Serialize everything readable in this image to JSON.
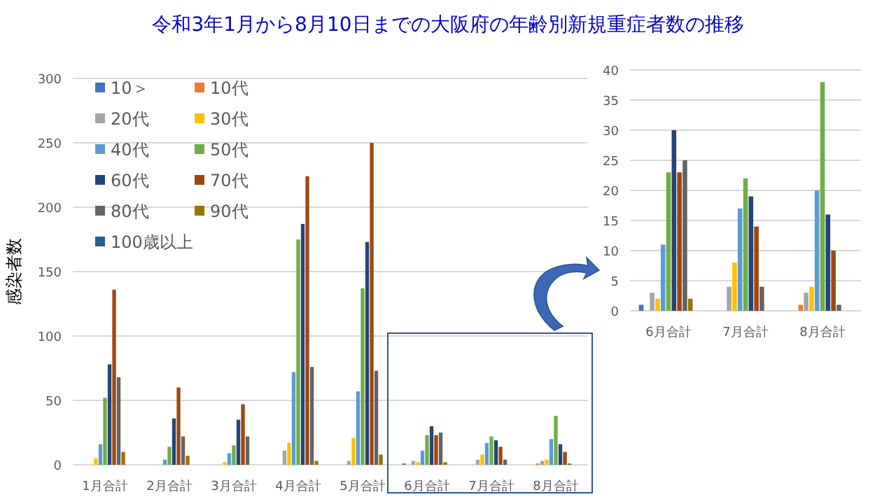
{
  "chart_data": [
    {
      "type": "bar",
      "title": "令和3年1月から8月10日までの大阪府の年齢別新規重症者数の推移",
      "ylabel": "感染者数",
      "categories": [
        "1月合計",
        "2月合計",
        "3月合計",
        "4月合計",
        "5月合計",
        "6月合計",
        "7月合計",
        "8月合計"
      ],
      "ylim": [
        0,
        300
      ],
      "yticks": [
        0,
        50,
        100,
        150,
        200,
        250,
        300
      ],
      "grid": "y",
      "legend": "top left",
      "series": [
        {
          "name": "10＞",
          "color": "#4472c4",
          "values": [
            0,
            0,
            0,
            0,
            0,
            1,
            0,
            0
          ]
        },
        {
          "name": "10代",
          "color": "#ed7d31",
          "values": [
            0,
            0,
            0,
            0,
            0,
            0,
            0,
            1
          ]
        },
        {
          "name": "20代",
          "color": "#a5a5a5",
          "values": [
            0,
            0,
            0,
            11,
            3,
            3,
            4,
            3
          ]
        },
        {
          "name": "30代",
          "color": "#ffc000",
          "values": [
            5,
            0,
            2,
            17,
            21,
            2,
            8,
            4
          ]
        },
        {
          "name": "40代",
          "color": "#5b9bd5",
          "values": [
            16,
            4,
            9,
            72,
            57,
            11,
            17,
            20
          ]
        },
        {
          "name": "50代",
          "color": "#70ad47",
          "values": [
            52,
            14,
            15,
            175,
            137,
            23,
            22,
            38
          ]
        },
        {
          "name": "60代",
          "color": "#264478",
          "values": [
            78,
            36,
            35,
            187,
            173,
            30,
            19,
            16
          ]
        },
        {
          "name": "70代",
          "color": "#9e480e",
          "values": [
            136,
            60,
            47,
            224,
            250,
            23,
            14,
            10
          ]
        },
        {
          "name": "80代",
          "color": "#636363",
          "values": [
            68,
            22,
            22,
            76,
            73,
            25,
            4,
            1
          ]
        },
        {
          "name": "90代",
          "color": "#997300",
          "values": [
            10,
            7,
            0,
            3,
            8,
            2,
            0,
            0
          ]
        },
        {
          "name": "100歳以上",
          "color": "#255e91",
          "values": [
            0,
            0,
            0,
            0,
            0,
            0,
            0,
            0
          ]
        }
      ]
    },
    {
      "type": "bar",
      "categories": [
        "6月合計",
        "7月合計",
        "8月合計"
      ],
      "ylim": [
        0,
        40
      ],
      "yticks": [
        0,
        5,
        10,
        15,
        20,
        25,
        30,
        35,
        40
      ],
      "grid": "y",
      "series": [
        {
          "color": "#4472c4",
          "values": [
            1,
            0,
            0
          ]
        },
        {
          "color": "#ed7d31",
          "values": [
            0,
            0,
            1
          ]
        },
        {
          "color": "#a5a5a5",
          "values": [
            3,
            4,
            3
          ]
        },
        {
          "color": "#ffc000",
          "values": [
            2,
            8,
            4
          ]
        },
        {
          "color": "#5b9bd5",
          "values": [
            11,
            17,
            20
          ]
        },
        {
          "color": "#70ad47",
          "values": [
            23,
            22,
            38
          ]
        },
        {
          "color": "#264478",
          "values": [
            30,
            19,
            16
          ]
        },
        {
          "color": "#9e480e",
          "values": [
            23,
            14,
            10
          ]
        },
        {
          "color": "#636363",
          "values": [
            25,
            4,
            1
          ]
        },
        {
          "color": "#997300",
          "values": [
            2,
            0,
            0
          ]
        },
        {
          "color": "#255e91",
          "values": [
            0,
            0,
            0
          ]
        }
      ]
    }
  ]
}
